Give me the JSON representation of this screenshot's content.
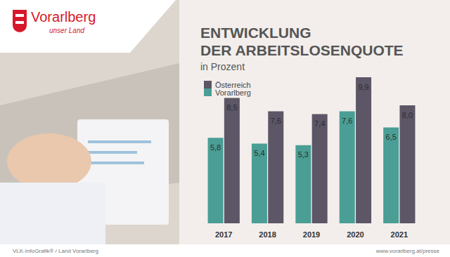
{
  "logo": {
    "name": "Vorarlberg",
    "tagline": "unser Land"
  },
  "footer": {
    "left": "VLK-InfoGrafik® / Land Vorarlberg",
    "right": "www.vorarlberg.at/presse"
  },
  "chart_data": {
    "type": "bar",
    "title": "ENTWICKLUNG\nDER ARBEITSLOSENQUOTE",
    "subtitle": "in Prozent",
    "categories": [
      "2017",
      "2018",
      "2019",
      "2020",
      "2021"
    ],
    "series": [
      {
        "name": "Vorarlberg",
        "color": "#4a9e95",
        "values": [
          5.8,
          5.4,
          5.3,
          7.6,
          6.5
        ],
        "value_labels": [
          "5,8",
          "5,4",
          "5,3",
          "7,6",
          "6,5"
        ]
      },
      {
        "name": "Österreich",
        "color": "#5c5666",
        "values": [
          8.5,
          7.6,
          7.4,
          9.9,
          8.0
        ],
        "value_labels": [
          "8,5",
          "7,6",
          "7,4",
          "9,9",
          "8,0"
        ]
      }
    ],
    "ylim": [
      0,
      10
    ],
    "legend": "top-left",
    "data_labels": true,
    "tick_labels": "x",
    "grid": false
  }
}
